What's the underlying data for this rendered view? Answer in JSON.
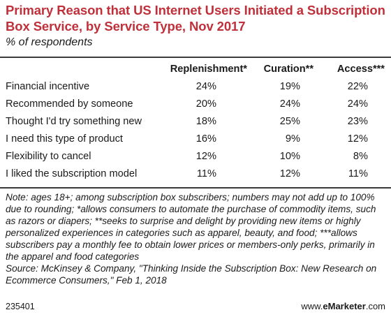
{
  "header": {
    "title": "Primary Reason that US Internet Users Initiated a Subscription Box Service, by Service Type, Nov 2017",
    "subtitle": "% of respondents"
  },
  "chart_data": {
    "type": "table",
    "columns": [
      "Replenishment*",
      "Curation**",
      "Access***"
    ],
    "rows": [
      {
        "label": "Financial incentive",
        "values": [
          "24%",
          "19%",
          "22%"
        ]
      },
      {
        "label": "Recommended by someone",
        "values": [
          "20%",
          "24%",
          "24%"
        ]
      },
      {
        "label": "Thought I'd try something new",
        "values": [
          "18%",
          "25%",
          "23%"
        ]
      },
      {
        "label": "I need this type of product",
        "values": [
          "16%",
          "9%",
          "12%"
        ]
      },
      {
        "label": "Flexibility to cancel",
        "values": [
          "12%",
          "10%",
          "8%"
        ]
      },
      {
        "label": "I liked the subscription model",
        "values": [
          "11%",
          "12%",
          "11%"
        ]
      }
    ]
  },
  "note": {
    "text": "Note: ages 18+; among subscription box subscribers; numbers may not add up to 100% due to rounding; *allows consumers to automate the purchase of commodity items, such as razors or diapers; **seeks to surprise and delight by providing new items or highly personalized experiences in categories such as apparel, beauty, and food; ***allows subscribers pay a monthly fee to obtain lower prices or members-only perks, primarily in the apparel and food categories",
    "source": "Source: McKinsey & Company, \"Thinking Inside the Subscription Box: New Research on Ecommerce Consumers,\" Feb 1, 2018"
  },
  "footer": {
    "chart_id": "235401",
    "brand_prefix": "www.",
    "brand_name": "eMarketer",
    "brand_suffix": ".com"
  }
}
